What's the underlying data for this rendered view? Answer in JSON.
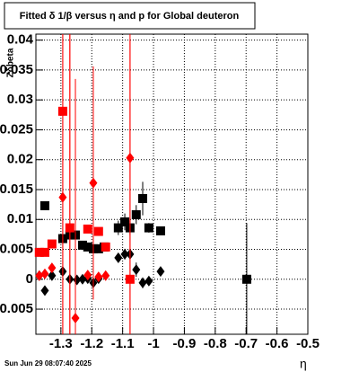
{
  "chart_data": {
    "type": "scatter",
    "title": "Fitted δ 1/β versus η and p for Global deuteron",
    "x_label": "η",
    "y_label": "Zδbeta",
    "footer": "Sun Jun 29 08:07:40 2025",
    "xlim": [
      -1.381,
      -0.5
    ],
    "ylim": [
      -0.0092,
      0.041
    ],
    "xticks": [
      -1.3,
      -1.2,
      -1.1,
      -1,
      -0.9,
      -0.8,
      -0.7,
      -0.6,
      -0.5
    ],
    "yticks": [
      -0.005,
      0,
      0.005,
      0.01,
      0.015,
      0.02,
      0.025,
      0.03,
      0.035,
      0.04
    ],
    "grid": true,
    "series": [
      {
        "color": "#000000",
        "marker": "square",
        "x": [
          -1.352,
          -1.294,
          -1.271,
          -1.253,
          -1.23,
          -1.213,
          -1.195,
          -1.178,
          -1.16,
          -1.114,
          -1.093,
          -1.076,
          -1.056,
          -1.035,
          -1.015,
          -0.977,
          -0.698
        ],
        "values": [
          0.0123,
          0.0068,
          0.0074,
          0.0074,
          0.0057,
          0.0054,
          0.0051,
          0.0051,
          0.0054,
          0.0086,
          0.0096,
          0.0086,
          0.0108,
          0.0135,
          0.0086,
          0.0081,
          0
        ],
        "errors": [
          0.0004,
          0.0005,
          0.0005,
          0.0004,
          0.0004,
          0.0004,
          0.0004,
          0.0004,
          0.0004,
          0.0012,
          0.0014,
          0.0012,
          0.0016,
          0.0028,
          0.0008,
          0.0007,
          0.0094
        ]
      },
      {
        "color": "#000000",
        "marker": "diamond",
        "x": [
          -1.37,
          -1.352,
          -1.329,
          -1.294,
          -1.271,
          -1.248,
          -1.23,
          -1.213,
          -1.195,
          -1.178,
          -1.114,
          -1.093,
          -1.076,
          -1.056,
          -1.035,
          -1.015,
          -0.977
        ],
        "values": [
          0.0006,
          -0.0019,
          0.0006,
          0.0013,
          0,
          -0.0001,
          0,
          0.0001,
          -0.0006,
          0.0001,
          0.0036,
          0.0042,
          0.0042,
          0.0016,
          -0.0006,
          -0.0003,
          0.0013
        ],
        "errors": [
          0.0003,
          0.0005,
          0.0003,
          0.0004,
          0.0003,
          0.0003,
          0.0003,
          0.0003,
          0.0003,
          0.0003,
          0.0007,
          0.0009,
          0.0009,
          0.0012,
          0.0009,
          0.0006,
          0.0006
        ]
      },
      {
        "color": "#ff0000",
        "marker": "square",
        "x": [
          -1.37,
          -1.352,
          -1.329,
          -1.294,
          -1.271,
          -1.213,
          -1.178,
          -1.155,
          -1.076
        ],
        "values": [
          0.0045,
          0.0045,
          0.0059,
          0.0281,
          0.0086,
          0.0084,
          0.008,
          0.0054,
          0
        ],
        "errors": [
          0.0004,
          0.0004,
          0.0005,
          0.04,
          0.04,
          0.0006,
          0.0006,
          0.0005,
          0.04
        ]
      },
      {
        "color": "#ff0000",
        "marker": "diamond",
        "x": [
          -1.37,
          -1.352,
          -1.329,
          -1.294,
          -1.271,
          -1.253,
          -1.213,
          -1.195,
          -1.178,
          -1.155,
          -1.076
        ],
        "values": [
          0.0006,
          0.0009,
          0.0019,
          0.0137,
          0.0086,
          -0.0065,
          0.0007,
          0.0161,
          0.0004,
          0.0006,
          0.0203
        ],
        "errors": [
          0.0003,
          0.0003,
          0.0004,
          0.04,
          0.04,
          0.04,
          0.0004,
          0.0195,
          0.0003,
          0.0004,
          0.04
        ]
      }
    ]
  }
}
